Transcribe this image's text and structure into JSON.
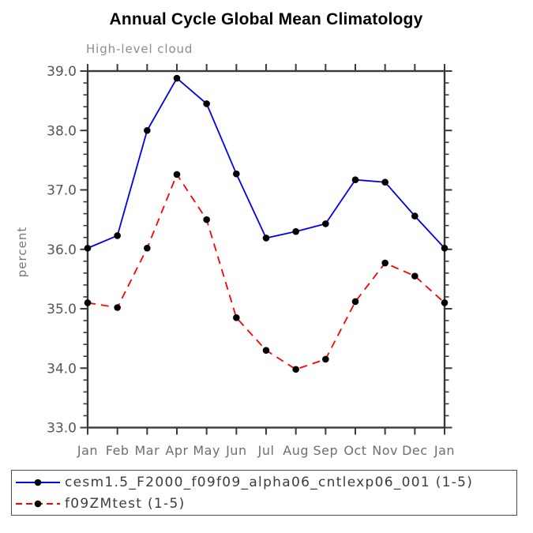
{
  "chart_data": {
    "type": "line",
    "title": "Annual Cycle Global Mean Climatology",
    "subtitle": "High-level cloud",
    "ylabel": "percent",
    "xlabel": "",
    "categories": [
      "Jan",
      "Feb",
      "Mar",
      "Apr",
      "May",
      "Jun",
      "Jul",
      "Aug",
      "Sep",
      "Oct",
      "Nov",
      "Dec",
      "Jan"
    ],
    "series": [
      {
        "name": "cesm1.5_F2000_f09f09_alpha06_cntlexp06_001 (1-5)",
        "color": "#0000ee",
        "line_style": "solid",
        "values": [
          36.02,
          36.23,
          38.0,
          38.88,
          38.45,
          37.27,
          36.19,
          36.3,
          36.43,
          37.17,
          37.13,
          36.56,
          36.02
        ]
      },
      {
        "name": "f09ZMtest (1-5)",
        "color": "#ff0000",
        "line_style": "dashed",
        "values": [
          35.1,
          35.02,
          36.02,
          37.26,
          36.5,
          34.85,
          34.3,
          33.98,
          34.15,
          35.12,
          35.77,
          35.55,
          35.1
        ]
      }
    ],
    "marker": "filled-circle",
    "marker_color": "#000000",
    "ylim": [
      33.0,
      39.0
    ],
    "ytick_values": [
      33,
      34,
      35,
      36,
      37,
      38,
      39
    ],
    "ytick_labels": [
      "33.0",
      "34.0",
      "35.0",
      "36.0",
      "37.0",
      "38.0",
      "39.0"
    ],
    "minor_step": 0.2,
    "grid": false,
    "legend_position": "bottom-box",
    "axis_color": "#3a3a3a"
  }
}
